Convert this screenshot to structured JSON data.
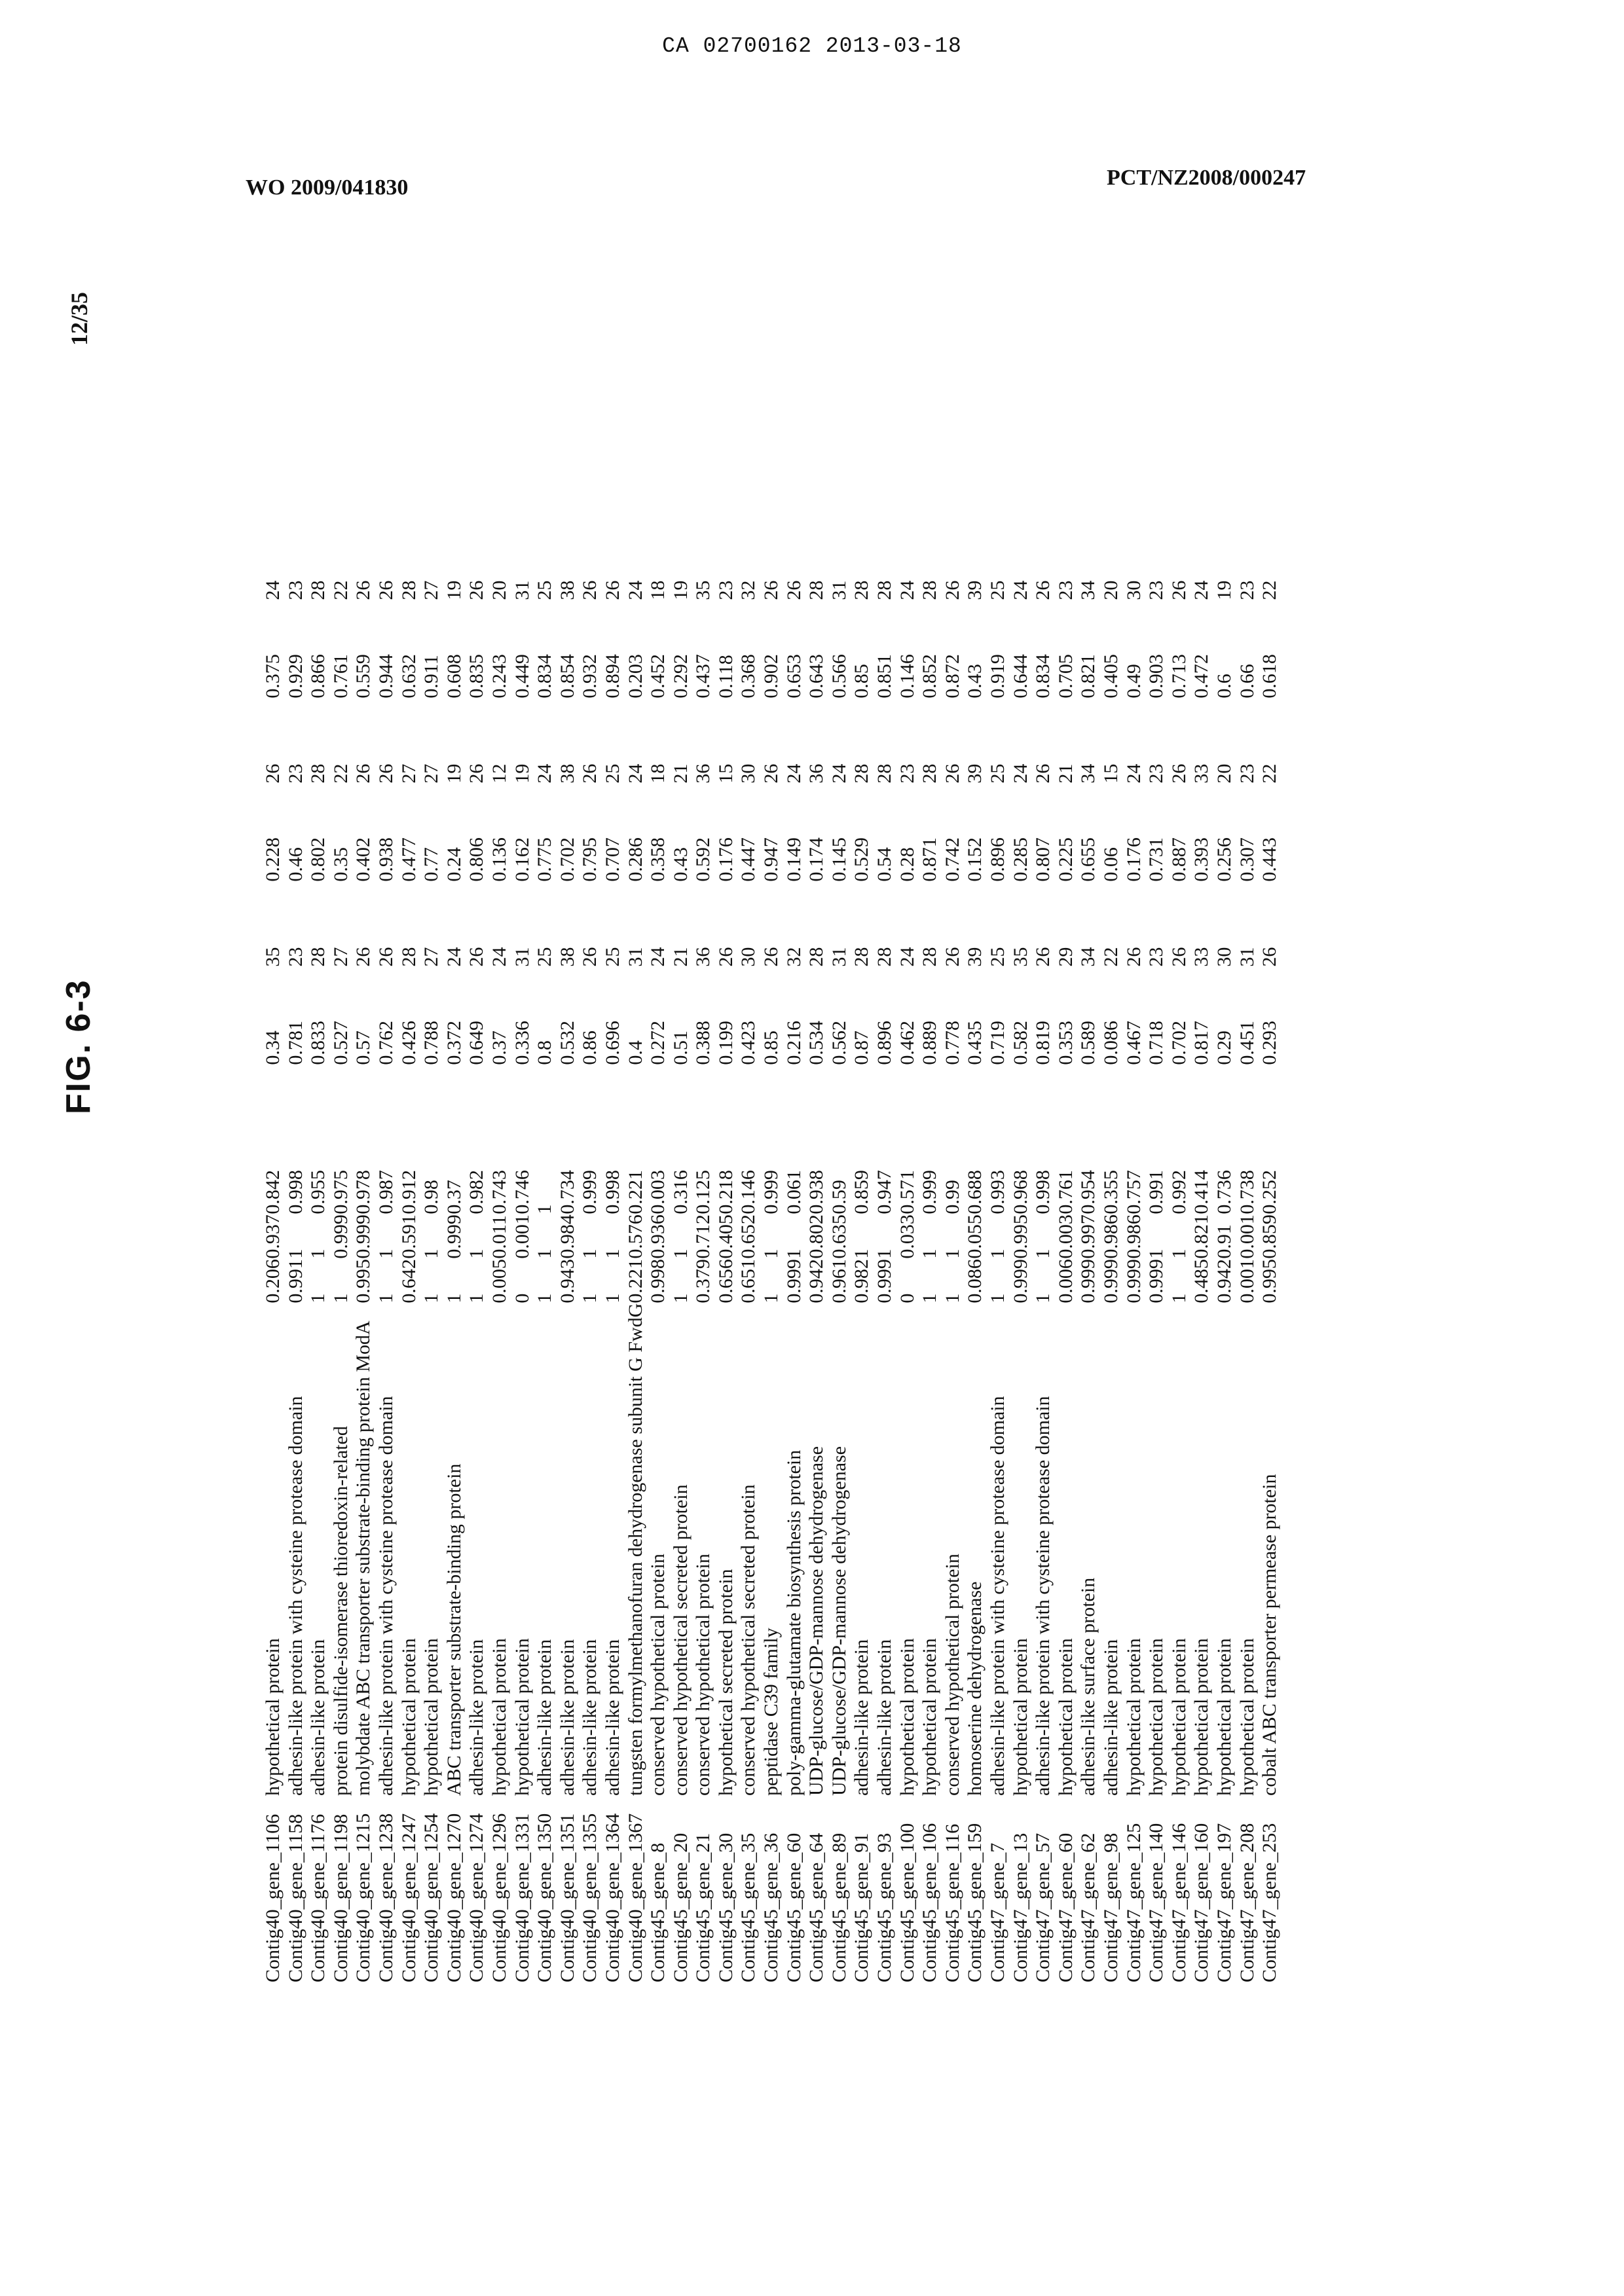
{
  "header": {
    "ca_number": "CA 02700162 2013-03-18",
    "wo_number": "WO 2009/041830",
    "pct_number": "PCT/NZ2008/000247"
  },
  "page_number": "12/35",
  "figure_label": "FIG. 6-3",
  "table": {
    "rows": [
      [
        "Contig40_gene_1106",
        "hypothetical protein",
        "0.206",
        "0.937",
        "0.842",
        "0.34",
        "35",
        "0.228",
        "26",
        "0.375",
        "24"
      ],
      [
        "Contig40_gene_1158",
        "adhesin-like protein with cysteine protease domain",
        "0.991",
        "1",
        "0.998",
        "0.781",
        "23",
        "0.46",
        "23",
        "0.929",
        "23"
      ],
      [
        "Contig40_gene_1176",
        "adhesin-like protein",
        "1",
        "1",
        "0.955",
        "0.833",
        "28",
        "0.802",
        "28",
        "0.866",
        "28"
      ],
      [
        "Contig40_gene_1198",
        "protein disulfide-isomerase thioredoxin-related",
        "1",
        "0.999",
        "0.975",
        "0.527",
        "27",
        "0.35",
        "22",
        "0.761",
        "22"
      ],
      [
        "Contig40_gene_1215",
        "molybdate ABC transporter substrate-binding protein ModA",
        "0.995",
        "0.999",
        "0.978",
        "0.57",
        "26",
        "0.402",
        "26",
        "0.559",
        "26"
      ],
      [
        "Contig40_gene_1238",
        "adhesin-like protein with cysteine protease domain",
        "1",
        "1",
        "0.987",
        "0.762",
        "26",
        "0.938",
        "26",
        "0.944",
        "26"
      ],
      [
        "Contig40_gene_1247",
        "hypothetical protein",
        "0.642",
        "0.591",
        "0.912",
        "0.426",
        "28",
        "0.477",
        "27",
        "0.632",
        "28"
      ],
      [
        "Contig40_gene_1254",
        "hypothetical protein",
        "1",
        "1",
        "0.98",
        "0.788",
        "27",
        "0.77",
        "27",
        "0.911",
        "27"
      ],
      [
        "Contig40_gene_1270",
        "ABC transporter substrate-binding protein",
        "1",
        "0.999",
        "0.37",
        "0.372",
        "24",
        "0.24",
        "19",
        "0.608",
        "19"
      ],
      [
        "Contig40_gene_1274",
        "adhesin-like protein",
        "1",
        "1",
        "0.982",
        "0.649",
        "26",
        "0.806",
        "26",
        "0.835",
        "26"
      ],
      [
        "Contig40_gene_1296",
        "hypothetical protein",
        "0.005",
        "0.011",
        "0.743",
        "0.37",
        "24",
        "0.136",
        "12",
        "0.243",
        "20"
      ],
      [
        "Contig40_gene_1331",
        "hypothetical protein",
        "0",
        "0.001",
        "0.746",
        "0.336",
        "31",
        "0.162",
        "19",
        "0.449",
        "31"
      ],
      [
        "Contig40_gene_1350",
        "adhesin-like protein",
        "1",
        "1",
        "1",
        "0.8",
        "25",
        "0.775",
        "24",
        "0.834",
        "25"
      ],
      [
        "Contig40_gene_1351",
        "adhesin-like protein",
        "0.943",
        "0.984",
        "0.734",
        "0.532",
        "38",
        "0.702",
        "38",
        "0.854",
        "38"
      ],
      [
        "Contig40_gene_1355",
        "adhesin-like protein",
        "1",
        "1",
        "0.999",
        "0.86",
        "26",
        "0.795",
        "26",
        "0.932",
        "26"
      ],
      [
        "Contig40_gene_1364",
        "adhesin-like protein",
        "1",
        "1",
        "0.998",
        "0.696",
        "25",
        "0.707",
        "25",
        "0.894",
        "26"
      ],
      [
        "Contig40_gene_1367",
        "tungsten formylmethanofuran dehydrogenase subunit G FwdG",
        "0.221",
        "0.576",
        "0.221",
        "0.4",
        "31",
        "0.286",
        "24",
        "0.203",
        "24"
      ],
      [
        "Contig45_gene_8",
        "conserved hypothetical protein",
        "0.998",
        "0.936",
        "0.003",
        "0.272",
        "24",
        "0.358",
        "18",
        "0.452",
        "18"
      ],
      [
        "Contig45_gene_20",
        "conserved hypothetical secreted protein",
        "1",
        "1",
        "0.316",
        "0.51",
        "21",
        "0.43",
        "21",
        "0.292",
        "19"
      ],
      [
        "Contig45_gene_21",
        "conserved hypothetical protein",
        "0.379",
        "0.712",
        "0.125",
        "0.388",
        "36",
        "0.592",
        "36",
        "0.437",
        "35"
      ],
      [
        "Contig45_gene_30",
        "hypothetical secreted protein",
        "0.656",
        "0.405",
        "0.218",
        "0.199",
        "26",
        "0.176",
        "15",
        "0.118",
        "23"
      ],
      [
        "Contig45_gene_35",
        "conserved hypothetical secreted protein",
        "0.651",
        "0.652",
        "0.146",
        "0.423",
        "30",
        "0.447",
        "30",
        "0.368",
        "32"
      ],
      [
        "Contig45_gene_36",
        "peptidase C39 family",
        "1",
        "1",
        "0.999",
        "0.85",
        "26",
        "0.947",
        "26",
        "0.902",
        "26"
      ],
      [
        "Contig45_gene_60",
        "poly-gamma-glutamate biosynthesis protein",
        "0.999",
        "1",
        "0.061",
        "0.216",
        "32",
        "0.149",
        "24",
        "0.653",
        "26"
      ],
      [
        "Contig45_gene_64",
        "UDP-glucose/GDP-mannose dehydrogenase",
        "0.942",
        "0.802",
        "0.938",
        "0.534",
        "28",
        "0.174",
        "36",
        "0.643",
        "28"
      ],
      [
        "Contig45_gene_89",
        "UDP-glucose/GDP-mannose dehydrogenase",
        "0.961",
        "0.635",
        "0.59",
        "0.562",
        "31",
        "0.145",
        "24",
        "0.566",
        "31"
      ],
      [
        "Contig45_gene_91",
        "adhesin-like protein",
        "0.982",
        "1",
        "0.859",
        "0.87",
        "28",
        "0.529",
        "28",
        "0.85",
        "28"
      ],
      [
        "Contig45_gene_93",
        "adhesin-like protein",
        "0.999",
        "1",
        "0.947",
        "0.896",
        "28",
        "0.54",
        "28",
        "0.851",
        "28"
      ],
      [
        "Contig45_gene_100",
        "hypothetical protein",
        "0",
        "0.033",
        "0.571",
        "0.462",
        "24",
        "0.28",
        "23",
        "0.146",
        "24"
      ],
      [
        "Contig45_gene_106",
        "hypothetical protein",
        "1",
        "1",
        "0.999",
        "0.889",
        "28",
        "0.871",
        "28",
        "0.852",
        "28"
      ],
      [
        "Contig45_gene_116",
        "conserved hypothetical protein",
        "1",
        "1",
        "0.99",
        "0.778",
        "26",
        "0.742",
        "26",
        "0.872",
        "26"
      ],
      [
        "Contig45_gene_159",
        "homoserine dehydrogenase",
        "0.086",
        "0.055",
        "0.688",
        "0.435",
        "39",
        "0.152",
        "39",
        "0.43",
        "39"
      ],
      [
        "Contig47_gene_7",
        "adhesin-like protein with cysteine protease domain",
        "1",
        "1",
        "0.993",
        "0.719",
        "25",
        "0.896",
        "25",
        "0.919",
        "25"
      ],
      [
        "Contig47_gene_13",
        "hypothetical protein",
        "0.999",
        "0.995",
        "0.968",
        "0.582",
        "35",
        "0.285",
        "24",
        "0.644",
        "24"
      ],
      [
        "Contig47_gene_57",
        "adhesin-like protein with cysteine protease domain",
        "1",
        "1",
        "0.998",
        "0.819",
        "26",
        "0.807",
        "26",
        "0.834",
        "26"
      ],
      [
        "Contig47_gene_60",
        "hypothetical protein",
        "0.006",
        "0.003",
        "0.761",
        "0.353",
        "29",
        "0.225",
        "21",
        "0.705",
        "23"
      ],
      [
        "Contig47_gene_62",
        "adhesin-like surface protein",
        "0.999",
        "0.997",
        "0.954",
        "0.589",
        "34",
        "0.655",
        "34",
        "0.821",
        "34"
      ],
      [
        "Contig47_gene_98",
        "adhesin-like protein",
        "0.999",
        "0.986",
        "0.355",
        "0.086",
        "22",
        "0.06",
        "15",
        "0.405",
        "20"
      ],
      [
        "Contig47_gene_125",
        "hypothetical protein",
        "0.999",
        "0.986",
        "0.757",
        "0.467",
        "26",
        "0.176",
        "24",
        "0.49",
        "30"
      ],
      [
        "Contig47_gene_140",
        "hypothetical protein",
        "0.999",
        "1",
        "0.991",
        "0.718",
        "23",
        "0.731",
        "23",
        "0.903",
        "23"
      ],
      [
        "Contig47_gene_146",
        "hypothetical protein",
        "1",
        "1",
        "0.992",
        "0.702",
        "26",
        "0.887",
        "26",
        "0.713",
        "26"
      ],
      [
        "Contig47_gene_160",
        "hypothetical protein",
        "0.485",
        "0.821",
        "0.414",
        "0.817",
        "33",
        "0.393",
        "33",
        "0.472",
        "24"
      ],
      [
        "Contig47_gene_197",
        "hypothetical protein",
        "0.942",
        "0.91",
        "0.736",
        "0.29",
        "30",
        "0.256",
        "20",
        "0.6",
        "19"
      ],
      [
        "Contig47_gene_208",
        "hypothetical protein",
        "0.001",
        "0.001",
        "0.738",
        "0.451",
        "31",
        "0.307",
        "23",
        "0.66",
        "23"
      ],
      [
        "Contig47_gene_253",
        "cobalt ABC transporter permease protein",
        "0.995",
        "0.859",
        "0.252",
        "0.293",
        "26",
        "0.443",
        "22",
        "0.618",
        "22"
      ]
    ]
  }
}
